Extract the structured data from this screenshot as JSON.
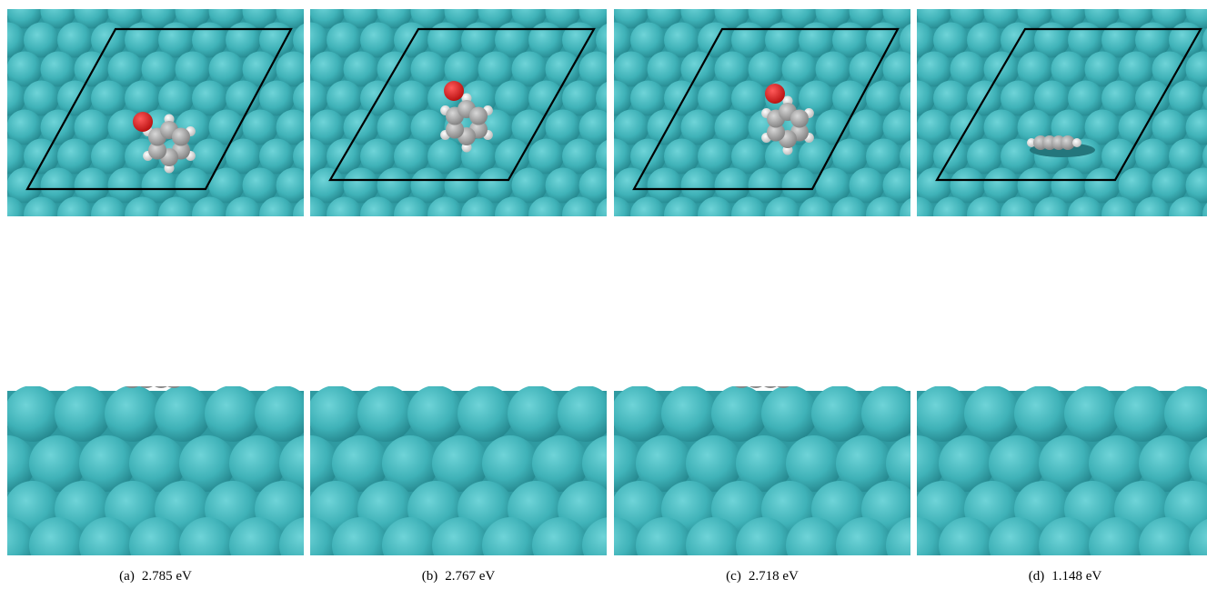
{
  "panels": [
    {
      "label": "(a)",
      "energy": "2.785 eV"
    },
    {
      "label": "(b)",
      "energy": "2.767 eV"
    },
    {
      "label": "(c)",
      "energy": "2.718 eV"
    },
    {
      "label": "(d)",
      "energy": "1.148 eV"
    }
  ]
}
